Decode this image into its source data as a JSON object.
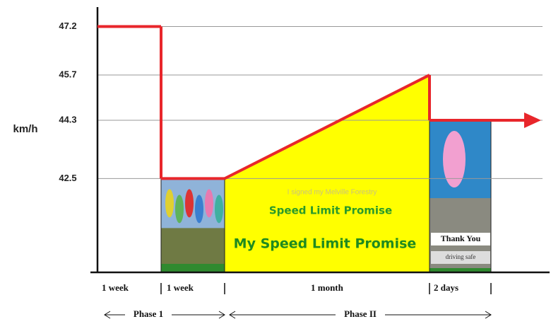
{
  "chart_data": {
    "type": "step-ramp",
    "y_label": "km/h",
    "categories": [
      "1 week",
      "1 week",
      "1 month",
      "2 days"
    ],
    "values_start": [
      47.2,
      42.5,
      42.5,
      44.3
    ],
    "values_end": [
      47.2,
      42.5,
      45.7,
      44.3
    ],
    "color": "#e8262b",
    "ylim": [
      39.6,
      47.8
    ],
    "yticks": [
      42.5,
      44.3,
      45.7,
      47.2
    ],
    "grid": true,
    "phases": [
      "Phase 1",
      "Phase II"
    ],
    "annotations": [
      "I signed my Melville Forestry",
      "Speed Limit Promise",
      "My Speed Limit Promise",
      "Thank You",
      "driving safe"
    ]
  }
}
